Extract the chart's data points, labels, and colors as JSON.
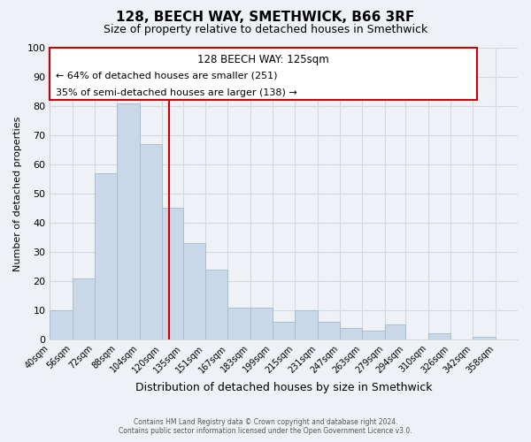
{
  "title": "128, BEECH WAY, SMETHWICK, B66 3RF",
  "subtitle": "Size of property relative to detached houses in Smethwick",
  "xlabel": "Distribution of detached houses by size in Smethwick",
  "ylabel": "Number of detached properties",
  "footer_line1": "Contains HM Land Registry data © Crown copyright and database right 2024.",
  "footer_line2": "Contains public sector information licensed under the Open Government Licence v3.0.",
  "bin_labels": [
    "40sqm",
    "56sqm",
    "72sqm",
    "88sqm",
    "104sqm",
    "120sqm",
    "135sqm",
    "151sqm",
    "167sqm",
    "183sqm",
    "199sqm",
    "215sqm",
    "231sqm",
    "247sqm",
    "263sqm",
    "279sqm",
    "294sqm",
    "310sqm",
    "326sqm",
    "342sqm",
    "358sqm"
  ],
  "bar_values": [
    10,
    21,
    57,
    81,
    67,
    45,
    33,
    24,
    11,
    11,
    6,
    10,
    6,
    4,
    3,
    5,
    0,
    2,
    0,
    1,
    0
  ],
  "bar_color": "#c8d8e8",
  "bar_edge_color": "#a8bfd0",
  "property_line_x": 125,
  "bin_edges": [
    40,
    56,
    72,
    88,
    104,
    120,
    135,
    151,
    167,
    183,
    199,
    215,
    231,
    247,
    263,
    279,
    294,
    310,
    326,
    342,
    358,
    374
  ],
  "annotation_title": "128 BEECH WAY: 125sqm",
  "annotation_line1": "← 64% of detached houses are smaller (251)",
  "annotation_line2": "35% of semi-detached houses are larger (138) →",
  "annotation_box_color": "#ffffff",
  "annotation_box_edge": "#cc0000",
  "vline_color": "#cc0000",
  "ylim": [
    0,
    100
  ],
  "yticks": [
    0,
    10,
    20,
    30,
    40,
    50,
    60,
    70,
    80,
    90,
    100
  ],
  "grid_color": "#d0d8e0",
  "background_color": "#eef2f7"
}
